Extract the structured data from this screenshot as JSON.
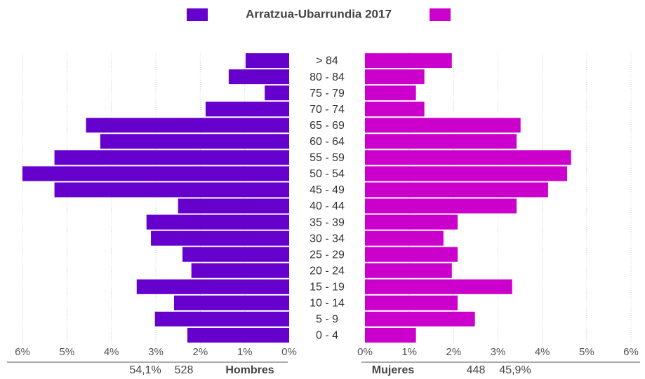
{
  "chart_data": {
    "type": "pyramid",
    "title": "Arratzua-Ubarrundia 2017",
    "categories": [
      "> 84",
      "80 - 84",
      "75 - 79",
      "70 - 74",
      "65 - 69",
      "60 - 64",
      "55 - 59",
      "50 - 54",
      "45 - 49",
      "40 - 44",
      "35 - 39",
      "30 - 34",
      "25 - 29",
      "20 - 24",
      "15 - 19",
      "10 - 14",
      "5 - 9",
      "0 - 4"
    ],
    "series": [
      {
        "name": "Hombres",
        "color": "#6600cc",
        "total": 528,
        "share": 54.1,
        "share_label": "54,1%",
        "values": [
          0.98,
          1.36,
          0.55,
          1.88,
          4.57,
          4.25,
          5.28,
          6.0,
          5.28,
          2.5,
          3.21,
          3.11,
          2.4,
          2.2,
          3.43,
          2.59,
          3.02,
          2.29
        ]
      },
      {
        "name": "Mujeres",
        "color": "#cc00cc",
        "total": 448,
        "share": 45.9,
        "share_label": "45,9%",
        "values": [
          1.96,
          1.34,
          1.15,
          1.34,
          3.51,
          3.42,
          4.65,
          4.56,
          4.13,
          3.42,
          2.09,
          1.77,
          2.09,
          1.96,
          3.32,
          2.09,
          2.48,
          1.15
        ]
      }
    ],
    "xlim": [
      0,
      6
    ],
    "xticks": [
      {
        "value": 0,
        "label": "0%"
      },
      {
        "value": 1,
        "label": "1%"
      },
      {
        "value": 2,
        "label": "2%"
      },
      {
        "value": 3,
        "label": "3%"
      },
      {
        "value": 4,
        "label": "4%"
      },
      {
        "value": 5,
        "label": "5%"
      },
      {
        "value": 6,
        "label": "6%"
      }
    ],
    "grid": true
  }
}
